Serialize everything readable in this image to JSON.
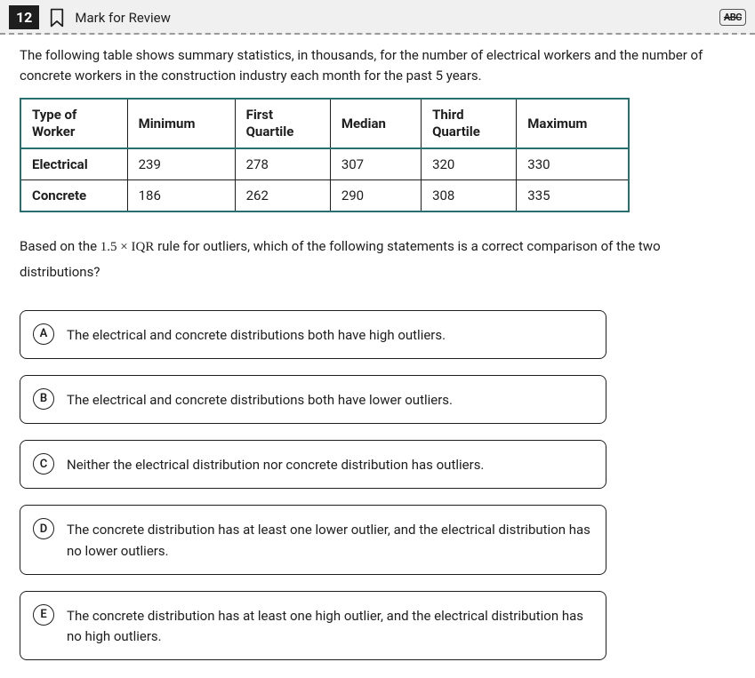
{
  "header": {
    "question_number": "12",
    "mark_for_review": "Mark for Review",
    "abc_badge": "ABC"
  },
  "question": {
    "intro": "The following table shows summary statistics, in thousands, for the number of electrical workers and the number of concrete workers in the construction industry each month for the past 5 years.",
    "table": {
      "columns": [
        "Type of Worker",
        "Minimum",
        "First Quartile",
        "Median",
        "Third Quartile",
        "Maximum"
      ],
      "rows": [
        [
          "Electrical",
          "239",
          "278",
          "307",
          "320",
          "330"
        ],
        [
          "Concrete",
          "186",
          "262",
          "290",
          "308",
          "335"
        ]
      ]
    },
    "prompt_before": "Based on the ",
    "prompt_math": "1.5 × IQR",
    "prompt_after": " rule for outliers, which of the following statements is a correct comparison of the two distributions?"
  },
  "choices": [
    {
      "letter": "A",
      "text": "The electrical and concrete distributions both have high outliers."
    },
    {
      "letter": "B",
      "text": "The electrical and concrete distributions both have lower outliers."
    },
    {
      "letter": "C",
      "text": "Neither the electrical distribution nor concrete distribution has outliers."
    },
    {
      "letter": "D",
      "text": "The concrete distribution has at least one lower outlier, and the electrical distribution has no lower outliers."
    },
    {
      "letter": "E",
      "text": "The concrete distribution has at least one high outlier, and the electrical distribution has no high outliers."
    }
  ]
}
